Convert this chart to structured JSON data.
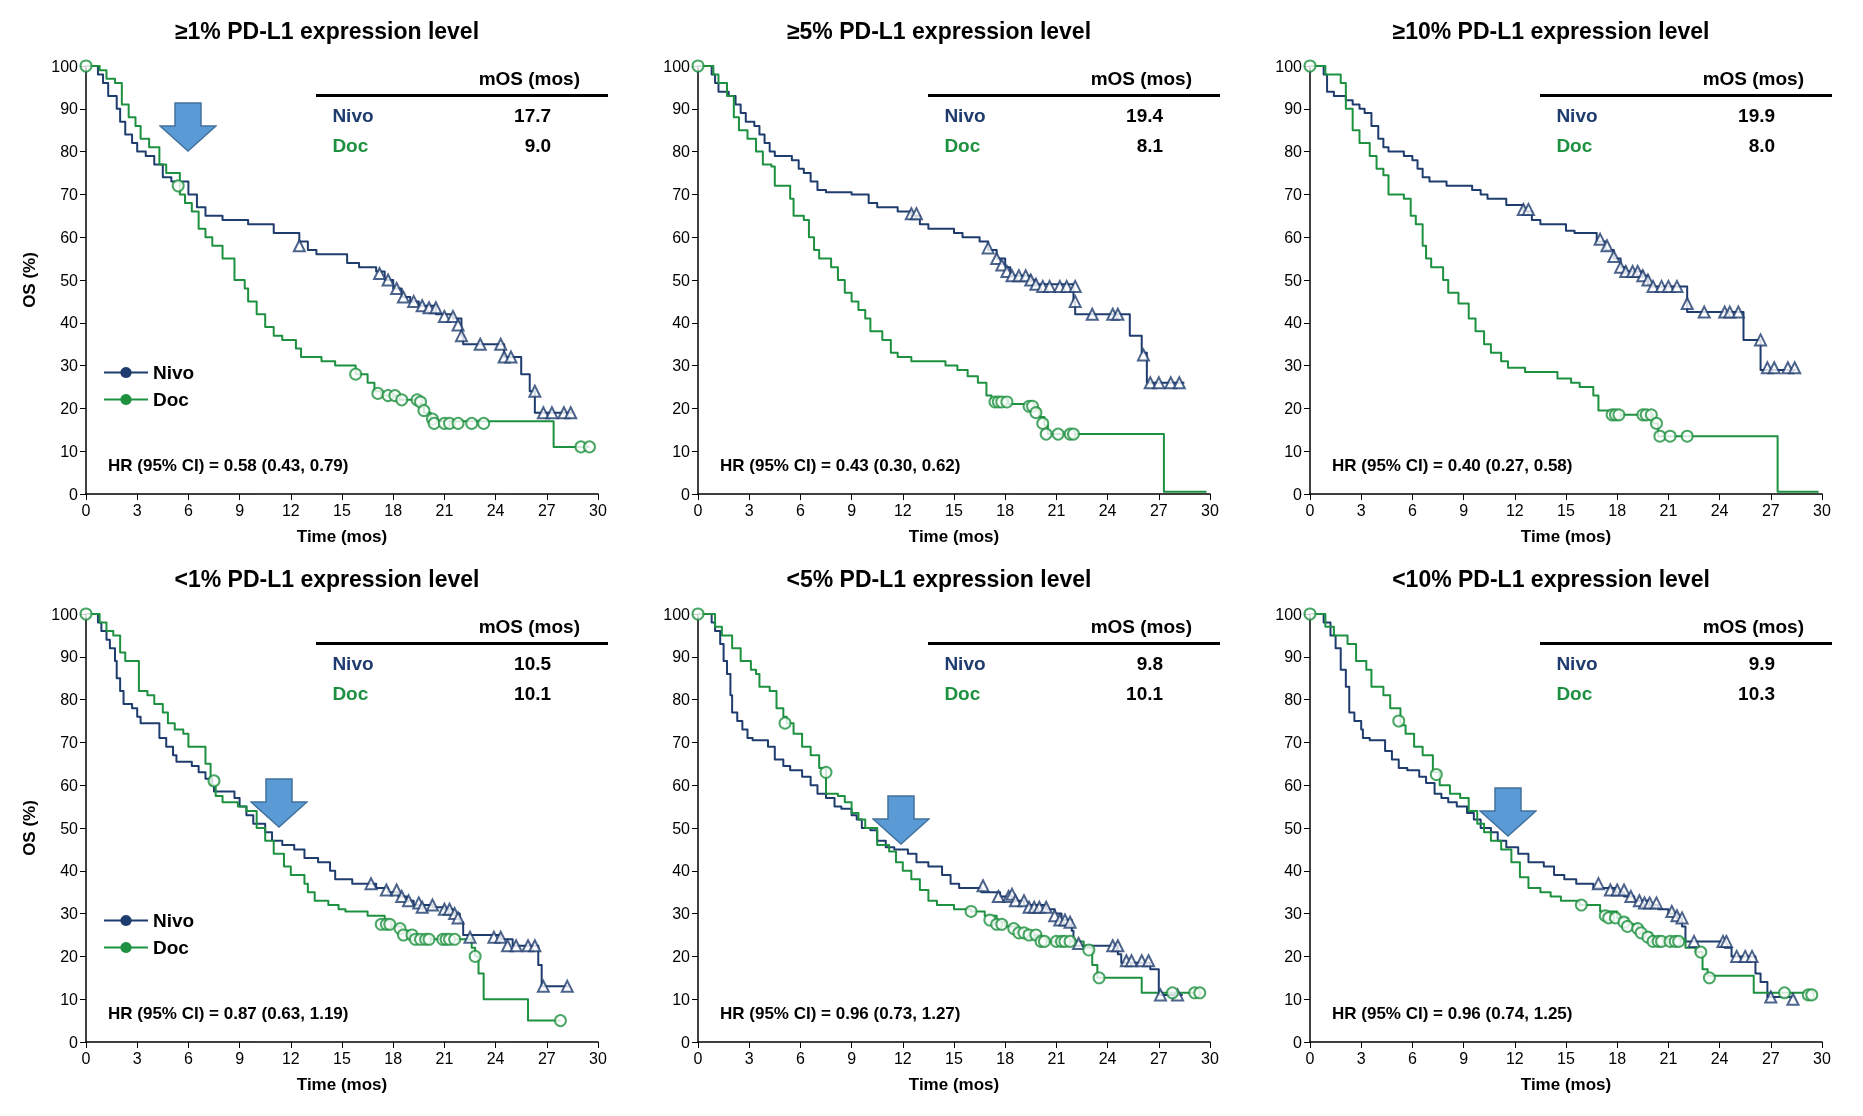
{
  "chart_data": [
    {
      "type": "step",
      "title": "≥1% PD-L1 expression level",
      "xlabel": "Time (mos)",
      "ylabel": "OS (%)",
      "xlim": [
        0,
        30
      ],
      "xticks": [
        0,
        3,
        6,
        9,
        12,
        15,
        18,
        21,
        24,
        27,
        30
      ],
      "ylim": [
        0,
        100
      ],
      "yticks": [
        0,
        10,
        20,
        30,
        40,
        50,
        60,
        70,
        80,
        90,
        100
      ],
      "grid": false,
      "legend": "bottom left",
      "marker": "none",
      "annotations": [
        "mOS (mos)",
        "17.7",
        "9.0",
        "HR (95% CI) = 0.58 (0.43, 0.79)"
      ],
      "series": [
        {
          "name": "Nivo",
          "color": "#1f3c6e",
          "type": "step",
          "x": [
            0,
            0.7,
            1,
            1.3,
            1.8,
            2,
            2.3,
            2.7,
            3,
            3.5,
            4,
            4.5,
            5,
            6,
            6.5,
            7,
            8,
            9.5,
            11,
            12.5,
            13,
            13.5,
            15.3,
            16,
            17,
            17.5,
            18,
            18.5,
            19,
            19.5,
            20.5,
            21.5,
            22,
            22.1,
            24.5,
            25.5,
            26,
            26.3,
            28.5
          ],
          "values": [
            100,
            98,
            96,
            93,
            90,
            87,
            84,
            82,
            80,
            79,
            77,
            74,
            73,
            70,
            67,
            65,
            64,
            63,
            61,
            59,
            57,
            56,
            54,
            53,
            52,
            50,
            48,
            46,
            45,
            44,
            42,
            41,
            37,
            35,
            32,
            28,
            24,
            19,
            19
          ]
        },
        {
          "name": "Doc",
          "color": "#1e9140",
          "type": "step",
          "x": [
            0,
            0.8,
            1.2,
            1.7,
            2.1,
            2.5,
            2.9,
            3.2,
            3.7,
            4.3,
            4.7,
            5.5,
            5.8,
            6.2,
            6.6,
            7,
            7.4,
            8,
            8.7,
            9.3,
            9.5,
            10,
            10.5,
            11,
            11.5,
            12.3,
            12.6,
            13.8,
            14.6,
            15.8,
            16.5,
            16.9,
            17.3,
            18.3,
            19.6,
            19.8,
            20.2,
            27.4,
            29.5
          ],
          "values": [
            100,
            99,
            97,
            96,
            91,
            88,
            86,
            83,
            81,
            77,
            75,
            70,
            68,
            66,
            62,
            60,
            58,
            55,
            50,
            48,
            45,
            42,
            39,
            37,
            36,
            34,
            32,
            31,
            30,
            28,
            26,
            24,
            23,
            22,
            21,
            19,
            17,
            11,
            11
          ]
        },
        {
          "color": "#1f3c6e",
          "type": "scatter",
          "marker": "triangle",
          "x": [
            12.5,
            17.2,
            17.7,
            18.2,
            18.6,
            19.2,
            19.7,
            20.1,
            20.5,
            21,
            21.5,
            21.8,
            22,
            23.1,
            24.3,
            24.5,
            24.9,
            26.3,
            26.8,
            27.3,
            28,
            28.4
          ],
          "values": [
            58,
            51.5,
            50,
            48,
            46,
            45,
            44,
            43.5,
            43.5,
            41.5,
            41.5,
            39.5,
            37,
            35,
            35,
            32,
            32,
            24,
            19,
            19,
            19,
            19
          ]
        },
        {
          "color": "#1e9140",
          "type": "scatter",
          "marker": "circle",
          "x": [
            0,
            5.4,
            15.8,
            17.1,
            17.7,
            18.1,
            18.5,
            19.4,
            19.6,
            19.8,
            20.3,
            20.4,
            21,
            21.3,
            21.8,
            22.6,
            23.3,
            29,
            29.5
          ],
          "values": [
            100,
            72,
            28,
            23.5,
            23,
            23,
            22,
            22,
            21.5,
            19.5,
            17.5,
            16.5,
            16.5,
            16.5,
            16.5,
            16.5,
            16.5,
            11,
            11
          ]
        }
      ]
    },
    {
      "type": "step",
      "title": "≥5% PD-L1 expression level",
      "xlabel": "Time (mos)",
      "xlim": [
        0,
        30
      ],
      "xticks": [
        0,
        3,
        6,
        9,
        12,
        15,
        18,
        21,
        24,
        27,
        30
      ],
      "ylim": [
        0,
        100
      ],
      "yticks": [
        0,
        10,
        20,
        30,
        40,
        50,
        60,
        70,
        80,
        90,
        100
      ],
      "grid": false,
      "legend": false,
      "marker": "none",
      "annotations": [
        "mOS (mos)",
        "19.4",
        "8.1",
        "HR (95% CI) = 0.43 (0.30, 0.62)"
      ],
      "series": [
        {
          "name": "Nivo",
          "color": "#1f3c6e",
          "type": "step",
          "x": [
            0,
            0.8,
            1,
            1.2,
            1.8,
            2.2,
            2.5,
            2.8,
            3.3,
            3.6,
            3.9,
            4.2,
            4.5,
            5.5,
            5.9,
            6.2,
            6.6,
            7,
            7.5,
            9,
            10,
            10.5,
            11.7,
            12.5,
            13,
            13.5,
            15,
            15.5,
            16.5,
            17,
            17.5,
            18,
            18.3,
            19.5,
            19.8,
            22,
            22.1,
            25.3,
            26,
            26.3,
            28.5
          ],
          "values": [
            100,
            98,
            96,
            94,
            93,
            91,
            89,
            87,
            86,
            84,
            82,
            80,
            79,
            78,
            76,
            75,
            73,
            71,
            70.5,
            70,
            68,
            67,
            66,
            65,
            63,
            62,
            61,
            60,
            59,
            57,
            55,
            53,
            51,
            50,
            49,
            45,
            42,
            37,
            33,
            26,
            26
          ]
        },
        {
          "name": "Doc",
          "color": "#1e9140",
          "type": "step",
          "x": [
            0,
            0.9,
            1.2,
            1.7,
            2.1,
            2.4,
            2.9,
            3.4,
            3.8,
            4.3,
            4.5,
            5.4,
            5.6,
            6.2,
            6.5,
            6.8,
            7.1,
            7.8,
            8.2,
            8.6,
            9,
            9.4,
            9.8,
            10.1,
            10.8,
            11.3,
            11.7,
            12.5,
            14.5,
            15.2,
            15.8,
            16.4,
            16.9,
            17.2,
            18.2,
            19.6,
            20,
            20.3,
            20.5,
            27.3,
            29.8
          ],
          "values": [
            100,
            98,
            96,
            93,
            88,
            85,
            83,
            80,
            77,
            76.5,
            72,
            69,
            65,
            64,
            60,
            57,
            55,
            53,
            50,
            47,
            45,
            43,
            41,
            38,
            36,
            33,
            32,
            31,
            30,
            29,
            27.5,
            26,
            23,
            22,
            21,
            20,
            18,
            16,
            14,
            0.5,
            0.5
          ]
        },
        {
          "color": "#1f3c6e",
          "type": "scatter",
          "marker": "triangle",
          "x": [
            12.5,
            12.8,
            17,
            17.5,
            17.8,
            18.1,
            18.4,
            18.8,
            19.2,
            19.5,
            19.8,
            20.2,
            20.6,
            21.2,
            21.6,
            22.1,
            22.1,
            23.1,
            24.3,
            24.6,
            26.1,
            26.5,
            27,
            27.7,
            28.2
          ],
          "values": [
            65.5,
            65.5,
            57.5,
            55,
            53.5,
            52,
            51,
            51,
            51,
            50,
            49,
            48.5,
            48.5,
            48.5,
            48.5,
            48.5,
            45,
            42,
            42,
            42,
            32.5,
            26,
            26,
            26,
            26
          ]
        },
        {
          "color": "#1e9140",
          "type": "scatter",
          "marker": "circle",
          "x": [
            0,
            17.4,
            17.6,
            17.8,
            18.1,
            19.4,
            19.6,
            19.8,
            20.2,
            20.4,
            21.1,
            21.8,
            22
          ],
          "values": [
            100,
            21.5,
            21.5,
            21.5,
            21.5,
            20.5,
            20.5,
            19,
            16.5,
            14,
            14,
            14,
            14
          ]
        }
      ]
    },
    {
      "type": "step",
      "title": "≥10% PD-L1 expression level",
      "xlabel": "Time (mos)",
      "xlim": [
        0,
        30
      ],
      "xticks": [
        0,
        3,
        6,
        9,
        12,
        15,
        18,
        21,
        24,
        27,
        30
      ],
      "ylim": [
        0,
        100
      ],
      "yticks": [
        0,
        10,
        20,
        30,
        40,
        50,
        60,
        70,
        80,
        90,
        100
      ],
      "grid": false,
      "legend": false,
      "marker": "none",
      "annotations": [
        "mOS (mos)",
        "19.9",
        "8.0",
        "HR (95% CI) = 0.40 (0.27, 0.58)"
      ],
      "series": [
        {
          "name": "Nivo",
          "color": "#1f3c6e",
          "type": "step",
          "x": [
            0,
            0.8,
            1,
            1.4,
            2.1,
            2.5,
            2.9,
            3.2,
            3.6,
            4,
            4.3,
            4.6,
            5.5,
            6,
            6.3,
            6.6,
            7,
            8,
            9.5,
            10,
            10.4,
            11.5,
            12.5,
            13,
            13.5,
            15,
            15.5,
            16.8,
            17.3,
            17.8,
            18.2,
            18.5,
            19.5,
            19.8,
            20,
            22.1,
            25.4,
            26.4,
            28.5
          ],
          "values": [
            100,
            98,
            94,
            93,
            92,
            91,
            90,
            89,
            86,
            83,
            81,
            80,
            79,
            78,
            76,
            74,
            73,
            72,
            71,
            70,
            69,
            67.5,
            66,
            64,
            63,
            61.5,
            61,
            59,
            57,
            55,
            53,
            52,
            51,
            49,
            48.5,
            42.5,
            36,
            29,
            29
          ]
        },
        {
          "name": "Doc",
          "color": "#1e9140",
          "type": "step",
          "x": [
            0,
            0.9,
            1.8,
            2.1,
            2.5,
            2.9,
            3.5,
            3.9,
            4.3,
            4.6,
            5.5,
            5.9,
            6.2,
            6.6,
            6.8,
            7.1,
            7.8,
            8.1,
            8.7,
            9.3,
            9.7,
            10.2,
            10.6,
            11.2,
            11.6,
            12.6,
            14.5,
            15.3,
            15.8,
            16.6,
            16.9,
            17.6,
            20.1,
            20.4,
            27.4,
            29.8
          ],
          "values": [
            100,
            98,
            96,
            90,
            85,
            82,
            79,
            76,
            74.5,
            70,
            69,
            65,
            63,
            58,
            55,
            53,
            50,
            47,
            44.5,
            41,
            38,
            35,
            33,
            31,
            29.5,
            28.5,
            27,
            26,
            25,
            23,
            19.5,
            18.5,
            16.5,
            13.5,
            0.5,
            0.5
          ]
        },
        {
          "color": "#1f3c6e",
          "type": "scatter",
          "marker": "triangle",
          "x": [
            12.5,
            12.8,
            17,
            17.4,
            17.8,
            18.2,
            18.5,
            18.9,
            19.2,
            19.5,
            19.8,
            20.1,
            20.6,
            21,
            21.5,
            22.1,
            23.1,
            24.3,
            24.6,
            25.1,
            26.4,
            26.8,
            27.2,
            28,
            28.4
          ],
          "values": [
            66.5,
            66.5,
            59.5,
            58,
            55.5,
            53,
            52,
            52,
            52,
            51,
            50,
            48.5,
            48.5,
            48.5,
            48.5,
            44.5,
            42.5,
            42.5,
            42.5,
            42.5,
            36,
            29.5,
            29.5,
            29.5,
            29.5
          ]
        },
        {
          "color": "#1e9140",
          "type": "scatter",
          "marker": "circle",
          "x": [
            0,
            17.7,
            17.9,
            18.1,
            19.5,
            19.7,
            20,
            20.3,
            20.5,
            21.1,
            22.1
          ],
          "values": [
            100,
            18.5,
            18.5,
            18.5,
            18.5,
            18.5,
            18.5,
            16.5,
            13.5,
            13.5,
            13.5
          ]
        }
      ]
    },
    {
      "type": "step",
      "title": "<1% PD-L1 expression level",
      "xlabel": "Time (mos)",
      "ylabel": "OS (%)",
      "xlim": [
        0,
        30
      ],
      "xticks": [
        0,
        3,
        6,
        9,
        12,
        15,
        18,
        21,
        24,
        27,
        30
      ],
      "ylim": [
        0,
        100
      ],
      "yticks": [
        0,
        10,
        20,
        30,
        40,
        50,
        60,
        70,
        80,
        90,
        100
      ],
      "grid": false,
      "legend": "bottom left",
      "marker": "none",
      "annotations": [
        "mOS (mos)",
        "10.5",
        "10.1",
        "HR (95% CI) = 0.87 (0.63, 1.19)"
      ],
      "series": [
        {
          "name": "Nivo",
          "color": "#1f3c6e",
          "type": "step",
          "x": [
            0,
            0.7,
            0.9,
            1.2,
            1.4,
            1.7,
            1.8,
            2,
            2.2,
            2.7,
            3,
            3.2,
            4,
            4.3,
            4.7,
            5.1,
            5.3,
            6.2,
            6.6,
            7,
            7.4,
            7.5,
            8.7,
            9,
            9.4,
            9.8,
            10.5,
            10.9,
            11.5,
            12.2,
            12.8,
            13.6,
            14.3,
            14.6,
            15.6,
            17,
            17.7,
            18.3,
            18.8,
            19.2,
            20.3,
            21,
            21.5,
            21.9,
            22.1,
            24.3,
            25,
            26.5,
            26.7,
            28.3
          ],
          "values": [
            100,
            98,
            96,
            94,
            92,
            89,
            85,
            82,
            79,
            78,
            76,
            74.5,
            74.5,
            71,
            69,
            67,
            65.5,
            64.5,
            63,
            61.5,
            60,
            58.5,
            57,
            55,
            53,
            51,
            49,
            47,
            46,
            45,
            43,
            42,
            40,
            38,
            37,
            36,
            35,
            34,
            33,
            32,
            31.5,
            31,
            30,
            28,
            25,
            24,
            22.5,
            18,
            13,
            13
          ]
        },
        {
          "name": "Doc",
          "color": "#1e9140",
          "type": "step",
          "x": [
            0,
            0.8,
            1.2,
            1.6,
            2,
            2.3,
            3.1,
            3.6,
            4,
            4.5,
            4.8,
            5.2,
            5.7,
            6,
            7,
            7.3,
            7.6,
            8,
            8.9,
            9.4,
            10,
            10.5,
            11,
            11.6,
            12,
            12.8,
            13,
            13.4,
            14.2,
            14.8,
            15.2,
            16.5,
            17.5,
            17.8,
            18.5,
            19,
            19.2,
            22.6,
            22.8,
            23,
            23.3,
            25.9,
            27.8
          ],
          "values": [
            100,
            98,
            96,
            95,
            91,
            89,
            82,
            81,
            79,
            77,
            74.5,
            73,
            72,
            69,
            65,
            60,
            57.5,
            56,
            55,
            54,
            50,
            47,
            44,
            41,
            39,
            37,
            35,
            33,
            32,
            31,
            30.5,
            29.5,
            28,
            27,
            26,
            25,
            24,
            22,
            20,
            16,
            10,
            5,
            5
          ]
        },
        {
          "color": "#1f3c6e",
          "type": "scatter",
          "marker": "triangle",
          "x": [
            16.7,
            17.6,
            18.2,
            18.5,
            18.9,
            19.5,
            19.7,
            20.3,
            21,
            21.3,
            21.6,
            21.8,
            22.5,
            23.9,
            24.3,
            24.7,
            25.2,
            25.9,
            26.3,
            26.8,
            28.2
          ],
          "values": [
            37,
            35.5,
            35.5,
            34,
            33,
            32.5,
            31.5,
            32,
            31,
            31,
            30,
            29,
            24.5,
            24.5,
            24.5,
            22.5,
            22.5,
            22.5,
            22.5,
            13,
            13
          ]
        },
        {
          "color": "#1e9140",
          "type": "scatter",
          "marker": "circle",
          "x": [
            0,
            7.5,
            17.3,
            17.6,
            17.8,
            18.4,
            18.6,
            19.1,
            19.3,
            19.6,
            19.9,
            20.1,
            20.9,
            21.1,
            21.3,
            21.6,
            22.8,
            27.8
          ],
          "values": [
            100,
            61,
            27.5,
            27.5,
            27.5,
            26.5,
            25,
            25,
            24,
            24,
            24,
            24,
            24,
            24,
            24,
            24,
            20,
            5
          ]
        }
      ]
    },
    {
      "type": "step",
      "title": "<5% PD-L1 expression level",
      "xlabel": "Time (mos)",
      "xlim": [
        0,
        30
      ],
      "xticks": [
        0,
        3,
        6,
        9,
        12,
        15,
        18,
        21,
        24,
        27,
        30
      ],
      "ylim": [
        0,
        100
      ],
      "yticks": [
        0,
        10,
        20,
        30,
        40,
        50,
        60,
        70,
        80,
        90,
        100
      ],
      "grid": false,
      "legend": false,
      "marker": "none",
      "annotations": [
        "mOS (mos)",
        "9.8",
        "10.1",
        "HR (95% CI) = 0.96 (0.73, 1.27)"
      ],
      "series": [
        {
          "name": "Nivo",
          "color": "#1f3c6e",
          "type": "step",
          "x": [
            0,
            0.8,
            1,
            1.3,
            1.5,
            1.7,
            1.9,
            2,
            2.3,
            2.6,
            2.9,
            3.2,
            4.1,
            4.5,
            5,
            5.4,
            6.1,
            6.6,
            7,
            7.5,
            8,
            8.4,
            9,
            9.3,
            9.6,
            10.1,
            10.5,
            11,
            11.5,
            12.3,
            12.8,
            13.5,
            14.3,
            14.8,
            15.3,
            16.6,
            17.7,
            18.5,
            19.1,
            20.4,
            20.9,
            21.3,
            21.9,
            22,
            22.1,
            24.6,
            24.8,
            26.5,
            27,
            28.4
          ],
          "values": [
            100,
            98,
            96,
            93,
            89,
            86,
            81,
            77,
            75,
            73,
            71,
            70.5,
            69,
            66,
            64.5,
            63.5,
            62,
            60,
            58,
            57,
            55,
            54.5,
            53,
            52,
            50,
            49.5,
            47,
            45.5,
            45,
            44,
            42,
            41,
            39,
            37,
            36,
            35,
            34,
            33,
            32,
            31,
            30,
            28.5,
            26,
            24,
            22.5,
            20.5,
            18.5,
            17,
            11,
            11
          ]
        },
        {
          "name": "Doc",
          "color": "#1e9140",
          "type": "step",
          "x": [
            0,
            1,
            1.4,
            2,
            2.5,
            3.1,
            3.4,
            3.6,
            4.2,
            4.6,
            5,
            5.2,
            5.6,
            6.1,
            6.6,
            7.1,
            7.5,
            8.2,
            8.6,
            9,
            9.4,
            9.8,
            10.5,
            11.2,
            11.6,
            12,
            12.5,
            13,
            13.5,
            14,
            15,
            16,
            16.8,
            17.5,
            18,
            18.8,
            19.4,
            20.1,
            20.5,
            22.6,
            23.1,
            23.4,
            26,
            29.5
          ],
          "values": [
            100,
            97,
            95,
            92,
            89,
            87,
            86,
            83,
            82,
            78,
            76,
            74.5,
            72,
            69,
            67,
            64,
            58,
            57.5,
            56,
            53.5,
            52,
            50,
            46,
            44.5,
            42,
            40,
            38,
            35.5,
            33,
            32,
            31,
            30.5,
            29.5,
            28,
            27,
            26,
            25,
            24,
            23.5,
            22,
            18,
            15,
            11.5,
            11.5
          ]
        },
        {
          "color": "#1f3c6e",
          "type": "scatter",
          "marker": "triangle",
          "x": [
            16.7,
            17.6,
            18.2,
            18.4,
            18.6,
            19.1,
            19.4,
            19.7,
            20,
            20.4,
            20.9,
            21.2,
            21.5,
            21.8,
            22.3,
            24.3,
            24.6,
            25.1,
            25.4,
            26,
            26.4,
            27.1,
            28.1
          ],
          "values": [
            36.5,
            34,
            34,
            34.5,
            33,
            33,
            31.5,
            31.5,
            31.5,
            31.5,
            29.5,
            28.5,
            28.5,
            28,
            23,
            22.5,
            22.5,
            19,
            19,
            19,
            19,
            11,
            11
          ]
        },
        {
          "color": "#1e9140",
          "type": "scatter",
          "marker": "circle",
          "x": [
            0,
            5.1,
            7.5,
            16,
            17.1,
            17.5,
            17.8,
            18.5,
            18.8,
            19.1,
            19.4,
            19.8,
            20.1,
            20.3,
            21,
            21.3,
            21.5,
            21.8,
            22.9,
            23.5,
            27.8,
            29.1,
            29.4
          ],
          "values": [
            100,
            74.5,
            63,
            30.5,
            28.5,
            27.5,
            27.5,
            26.5,
            25.5,
            25.5,
            25,
            25,
            23.5,
            23.5,
            23.5,
            23.5,
            23.5,
            23.5,
            21.5,
            15,
            11.5,
            11.5,
            11.5
          ]
        }
      ]
    },
    {
      "type": "step",
      "title": "<10% PD-L1 expression level",
      "xlabel": "Time (mos)",
      "xlim": [
        0,
        30
      ],
      "xticks": [
        0,
        3,
        6,
        9,
        12,
        15,
        18,
        21,
        24,
        27,
        30
      ],
      "ylim": [
        0,
        100
      ],
      "yticks": [
        0,
        10,
        20,
        30,
        40,
        50,
        60,
        70,
        80,
        90,
        100
      ],
      "grid": false,
      "legend": false,
      "marker": "none",
      "annotations": [
        "mOS (mos)",
        "9.9",
        "10.3",
        "HR (95% CI) = 0.96 (0.74, 1.25)"
      ],
      "series": [
        {
          "name": "Nivo",
          "color": "#1f3c6e",
          "type": "step",
          "x": [
            0,
            0.8,
            1.2,
            1.5,
            1.8,
            2.1,
            2.3,
            2.6,
            3,
            3.1,
            3.5,
            4.4,
            4.8,
            5.2,
            5.7,
            6.4,
            6.8,
            7.3,
            7.7,
            8.1,
            8.6,
            9.2,
            9.6,
            10,
            10.6,
            11,
            11.5,
            12.2,
            12.8,
            13.7,
            14.3,
            14.9,
            15.6,
            16.6,
            17.9,
            18.4,
            19,
            19.9,
            20.4,
            21,
            21.5,
            21.8,
            22,
            24.3,
            24.7,
            26.1,
            26.4,
            26.8,
            28.3
          ],
          "values": [
            100,
            98,
            95,
            92,
            87,
            83,
            77,
            75,
            73,
            71,
            70.5,
            68,
            66,
            64,
            63.5,
            62,
            60.5,
            58,
            57,
            56,
            55,
            53.5,
            52,
            50,
            49,
            47,
            45.5,
            44,
            42,
            41,
            39,
            38,
            37,
            36,
            35,
            34,
            33,
            32,
            31,
            30,
            29,
            27,
            23.5,
            22,
            20,
            16,
            14,
            10.5,
            10.5
          ]
        },
        {
          "name": "Doc",
          "color": "#1e9140",
          "type": "step",
          "x": [
            0,
            0.9,
            1.4,
            2.2,
            2.7,
            3.3,
            3.6,
            4.3,
            4.7,
            5.3,
            5.6,
            6.1,
            6.6,
            7.2,
            7.6,
            8.2,
            8.8,
            9.3,
            9.8,
            10.2,
            10.6,
            11.2,
            11.8,
            12.3,
            12.8,
            13.5,
            14.1,
            14.7,
            15.8,
            17,
            18,
            18.6,
            19.2,
            19.5,
            20,
            22,
            22.6,
            23,
            23.3,
            26,
            29.5
          ],
          "values": [
            100,
            97,
            95,
            93,
            89,
            87,
            83,
            81,
            78,
            74,
            72,
            69,
            67,
            63,
            60,
            58,
            57,
            54,
            51,
            49,
            47,
            45,
            42,
            38.5,
            36,
            35,
            34,
            33,
            32,
            30.5,
            29,
            27.5,
            26.5,
            25.5,
            24,
            22,
            21,
            17,
            15.5,
            11.5,
            11.5
          ]
        },
        {
          "color": "#1f3c6e",
          "type": "scatter",
          "marker": "triangle",
          "x": [
            16.9,
            17.6,
            18,
            18.4,
            18.8,
            19.3,
            19.6,
            19.9,
            20.3,
            21.2,
            21.5,
            21.8,
            22.5,
            24.2,
            24.4,
            25,
            25.5,
            25.9,
            27,
            28.3
          ],
          "values": [
            37,
            35.5,
            35.5,
            35.5,
            34,
            33,
            32.5,
            32.5,
            32.5,
            30.5,
            29.5,
            29,
            23.5,
            23.5,
            23.5,
            20,
            20,
            20,
            10.5,
            10
          ]
        },
        {
          "color": "#1e9140",
          "type": "scatter",
          "marker": "circle",
          "x": [
            0,
            5.2,
            7.4,
            15.9,
            17.3,
            17.5,
            17.9,
            18.4,
            18.6,
            19.2,
            19.4,
            19.8,
            20.1,
            20.4,
            20.6,
            21.1,
            21.4,
            21.6,
            22.9,
            23.4,
            27.8,
            29.2,
            29.4
          ],
          "values": [
            100,
            75,
            62.5,
            32,
            29.5,
            29,
            29,
            28,
            27,
            26.5,
            25.5,
            24.5,
            23.5,
            23.5,
            23.5,
            23.5,
            23.5,
            23.5,
            21,
            15,
            11.5,
            11,
            11
          ]
        }
      ]
    }
  ]
}
